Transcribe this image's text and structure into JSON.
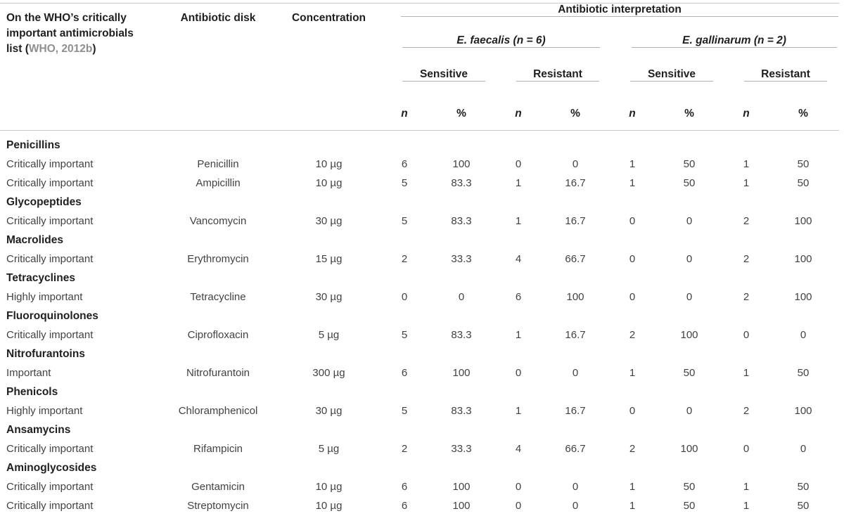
{
  "meta": {
    "rule_color": "#b3b3b3",
    "rule_light_color": "#c9c9c9",
    "header_text_color": "#1f1f1f",
    "body_text_color": "#424242",
    "citation_color": "#8f8f8f"
  },
  "table": {
    "who_header": {
      "line1": "On the WHO’s critically",
      "line2": "important antimicrobials",
      "line3_prefix": "list (",
      "citation": "WHO, 2012b",
      "line3_suffix": ")"
    },
    "headers": {
      "antibiotic_disk": "Antibiotic disk",
      "concentration": "Concentration",
      "interpretation": "Antibiotic interpretation",
      "groups": [
        {
          "species": "E. faecalis",
          "count": "(n = 6)"
        },
        {
          "species": "E. gallinarum",
          "count": "(n = 2)"
        }
      ],
      "sensitive": "Sensitive",
      "resistant": "Resistant",
      "n": "n",
      "percent": "%"
    },
    "rows": [
      {
        "type": "category",
        "label": "Penicillins"
      },
      {
        "type": "data",
        "importance": "Critically important",
        "antibiotic": "Penicillin",
        "concentration": "10 µg",
        "values": [
          "6",
          "100",
          "0",
          "0",
          "1",
          "50",
          "1",
          "50"
        ]
      },
      {
        "type": "data",
        "importance": "Critically important",
        "antibiotic": "Ampicillin",
        "concentration": "10 µg",
        "values": [
          "5",
          "83.3",
          "1",
          "16.7",
          "1",
          "50",
          "1",
          "50"
        ]
      },
      {
        "type": "category",
        "label": "Glycopeptides"
      },
      {
        "type": "data",
        "importance": "Critically important",
        "antibiotic": "Vancomycin",
        "concentration": "30 µg",
        "values": [
          "5",
          "83.3",
          "1",
          "16.7",
          "0",
          "0",
          "2",
          "100"
        ]
      },
      {
        "type": "category",
        "label": "Macrolides"
      },
      {
        "type": "data",
        "importance": "Critically important",
        "antibiotic": "Erythromycin",
        "concentration": "15 µg",
        "values": [
          "2",
          "33.3",
          "4",
          "66.7",
          "0",
          "0",
          "2",
          "100"
        ]
      },
      {
        "type": "category",
        "label": "Tetracyclines"
      },
      {
        "type": "data",
        "importance": "Highly important",
        "antibiotic": "Tetracycline",
        "concentration": "30 µg",
        "values": [
          "0",
          "0",
          "6",
          "100",
          "0",
          "0",
          "2",
          "100"
        ]
      },
      {
        "type": "category",
        "label": "Fluoroquinolones"
      },
      {
        "type": "data",
        "importance": "Critically important",
        "antibiotic": "Ciprofloxacin",
        "concentration": "5 µg",
        "values": [
          "5",
          "83.3",
          "1",
          "16.7",
          "2",
          "100",
          "0",
          "0"
        ]
      },
      {
        "type": "category",
        "label": "Nitrofurantoins"
      },
      {
        "type": "data",
        "importance": "Important",
        "antibiotic": "Nitrofurantoin",
        "concentration": "300 µg",
        "values": [
          "6",
          "100",
          "0",
          "0",
          "1",
          "50",
          "1",
          "50"
        ]
      },
      {
        "type": "category",
        "label": "Phenicols"
      },
      {
        "type": "data",
        "importance": "Highly important",
        "antibiotic": "Chloramphenicol",
        "concentration": "30 µg",
        "values": [
          "5",
          "83.3",
          "1",
          "16.7",
          "0",
          "0",
          "2",
          "100"
        ]
      },
      {
        "type": "category",
        "label": "Ansamycins"
      },
      {
        "type": "data",
        "importance": "Critically important",
        "antibiotic": "Rifampicin",
        "concentration": "5 µg",
        "values": [
          "2",
          "33.3",
          "4",
          "66.7",
          "2",
          "100",
          "0",
          "0"
        ]
      },
      {
        "type": "category",
        "label": "Aminoglycosides"
      },
      {
        "type": "data",
        "importance": "Critically important",
        "antibiotic": "Gentamicin",
        "concentration": "10 µg",
        "values": [
          "6",
          "100",
          "0",
          "0",
          "1",
          "50",
          "1",
          "50"
        ]
      },
      {
        "type": "data",
        "importance": "Critically important",
        "antibiotic": "Streptomycin",
        "concentration": "10 µg",
        "values": [
          "6",
          "100",
          "0",
          "0",
          "1",
          "50",
          "1",
          "50"
        ]
      }
    ]
  }
}
